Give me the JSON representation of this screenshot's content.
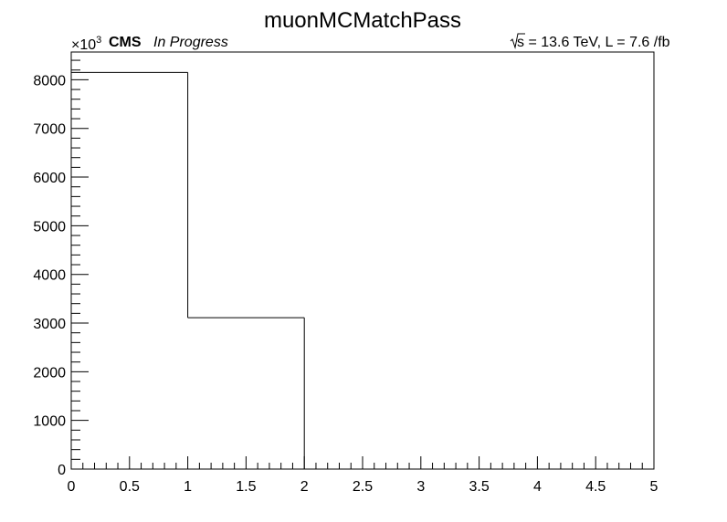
{
  "chart_data": {
    "type": "bar",
    "histogram_style": "step",
    "title": "muonMCMatchPass",
    "experiment_label": "CMS",
    "status_label": "In Progress",
    "lumi_label": "s = 13.6 TeV, L = 7.6 /fb",
    "y_multiplier_label": "×10",
    "y_multiplier_exponent": "3",
    "xlabel": "",
    "ylabel": "",
    "bin_edges": [
      0,
      1,
      2,
      3,
      4,
      5
    ],
    "values": [
      8150,
      3110,
      0,
      0,
      0
    ],
    "xlim": [
      0,
      5
    ],
    "ylim": [
      0,
      8570
    ],
    "x_ticks": [
      0,
      0.5,
      1,
      1.5,
      2,
      2.5,
      3,
      3.5,
      4,
      4.5,
      5
    ],
    "x_tick_labels": [
      "0",
      "0.5",
      "1",
      "1.5",
      "2",
      "2.5",
      "3",
      "3.5",
      "4",
      "4.5",
      "5"
    ],
    "y_ticks": [
      0,
      1000,
      2000,
      3000,
      4000,
      5000,
      6000,
      7000,
      8000
    ],
    "y_tick_labels": [
      "0",
      "1000",
      "2000",
      "3000",
      "4000",
      "5000",
      "6000",
      "7000",
      "8000"
    ],
    "grid": false,
    "legend": "none",
    "line_color": "#000000",
    "background_color": "#ffffff"
  }
}
